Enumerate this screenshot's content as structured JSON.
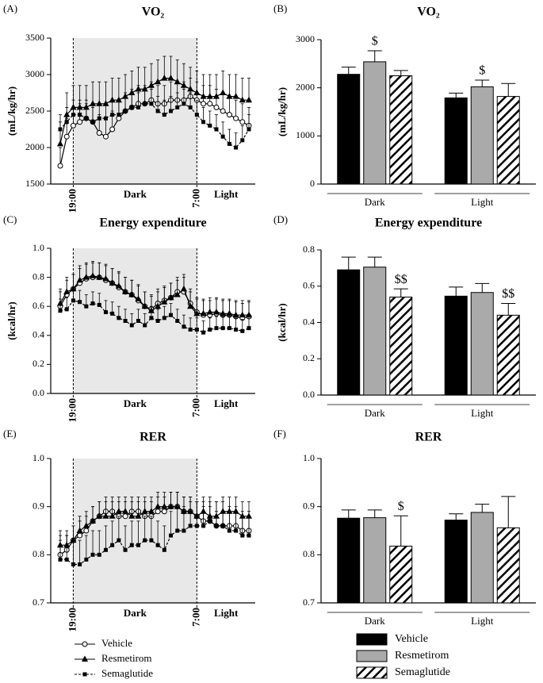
{
  "chart_data": [
    {
      "type": "line",
      "panel": "(A)",
      "title": "VO₂",
      "ylabel": "(mL/kg/hr)",
      "categories": [
        null,
        null,
        "19:00",
        null,
        null,
        null,
        null,
        null,
        null,
        null,
        null,
        null,
        null,
        null,
        null,
        null,
        null,
        null,
        null,
        null,
        null,
        "7:00",
        null,
        null,
        null,
        null,
        null,
        null,
        null,
        null
      ],
      "period_labels": [
        "Dark",
        "Light"
      ],
      "ylim": [
        1500,
        3500
      ],
      "yticks": [
        1500,
        2000,
        2500,
        3000,
        3500
      ],
      "series": [
        {
          "marker": "circle-open",
          "dash": false,
          "color": "#000",
          "values": [
            1750,
            2150,
            2300,
            2350,
            2400,
            2350,
            2200,
            2150,
            2250,
            2400,
            2500,
            2550,
            2600,
            2600,
            2650,
            2600,
            2600,
            2650,
            2650,
            2650,
            2700,
            2650,
            2600,
            2600,
            2550,
            2500,
            2450,
            2400,
            2350,
            2300
          ],
          "errors": [
            250,
            250,
            250,
            250,
            250,
            250,
            250,
            250,
            250,
            250,
            250,
            250,
            250,
            250,
            250,
            250,
            250,
            250,
            250,
            250,
            250,
            250,
            250,
            250,
            250,
            250,
            250,
            250,
            250,
            250
          ]
        },
        {
          "marker": "triangle",
          "dash": false,
          "color": "#000",
          "values": [
            2050,
            2450,
            2550,
            2550,
            2550,
            2600,
            2600,
            2600,
            2650,
            2650,
            2700,
            2750,
            2800,
            2800,
            2850,
            2900,
            2950,
            2950,
            2900,
            2850,
            2800,
            2750,
            2700,
            2700,
            2700,
            2750,
            2700,
            2700,
            2650,
            2650
          ],
          "errors": [
            300,
            300,
            300,
            300,
            300,
            300,
            300,
            300,
            300,
            300,
            300,
            300,
            300,
            300,
            300,
            300,
            300,
            300,
            300,
            300,
            300,
            300,
            300,
            300,
            300,
            300,
            300,
            300,
            300,
            300
          ]
        },
        {
          "marker": "square",
          "dash": true,
          "color": "#000",
          "values": [
            2250,
            2350,
            2450,
            2450,
            2400,
            2350,
            2400,
            2400,
            2450,
            2450,
            2500,
            2550,
            2550,
            2600,
            2600,
            2500,
            2450,
            2500,
            2550,
            2600,
            2550,
            2450,
            2350,
            2300,
            2250,
            2150,
            2050,
            2000,
            2100,
            2250
          ],
          "errors": [
            200,
            200,
            200,
            200,
            200,
            200,
            200,
            200,
            200,
            200,
            200,
            200,
            200,
            200,
            200,
            200,
            200,
            200,
            200,
            200,
            200,
            200,
            200,
            200,
            200,
            200,
            200,
            200,
            200,
            200
          ]
        }
      ]
    },
    {
      "type": "bar",
      "panel": "(B)",
      "title": "VO₂",
      "ylabel": "(mL/kg/hr)",
      "categories": [
        "Dark",
        "Light"
      ],
      "ylim": [
        0,
        3000
      ],
      "yticks": [
        0,
        1000,
        2000,
        3000
      ],
      "series": [
        {
          "color": "#000",
          "pattern": false,
          "values": [
            2280,
            1790
          ],
          "errors": [
            150,
            100
          ],
          "annotations": [
            null,
            null
          ]
        },
        {
          "color": "#aaa",
          "pattern": false,
          "values": [
            2540,
            2020
          ],
          "errors": [
            230,
            140
          ],
          "annotations": [
            "$",
            "$"
          ]
        },
        {
          "color": "#000",
          "pattern": true,
          "values": [
            2250,
            1820
          ],
          "errors": [
            110,
            270
          ],
          "annotations": [
            null,
            null
          ]
        }
      ]
    },
    {
      "type": "line",
      "panel": "(C)",
      "title": "Energy expenditure",
      "ylabel": "(kcal/hr)",
      "categories": [
        null,
        null,
        "19:00",
        null,
        null,
        null,
        null,
        null,
        null,
        null,
        null,
        null,
        null,
        null,
        null,
        null,
        null,
        null,
        null,
        null,
        null,
        "7:00",
        null,
        null,
        null,
        null,
        null,
        null,
        null,
        null
      ],
      "period_labels": [
        "Dark",
        "Light"
      ],
      "ylim": [
        0,
        1
      ],
      "yticks": [
        {
          "value": 0,
          "label": "0.0"
        },
        0.2,
        0.4,
        0.6,
        0.8,
        {
          "value": 1,
          "label": "1.0"
        }
      ],
      "series": [
        {
          "marker": "circle-open",
          "dash": false,
          "color": "#000",
          "values": [
            0.6,
            0.68,
            0.72,
            0.76,
            0.79,
            0.8,
            0.8,
            0.78,
            0.76,
            0.73,
            0.7,
            0.68,
            0.64,
            0.6,
            0.58,
            0.62,
            0.64,
            0.66,
            0.7,
            0.7,
            0.62,
            0.56,
            0.54,
            0.54,
            0.55,
            0.54,
            0.54,
            0.53,
            0.52,
            0.53
          ],
          "errors": [
            0.1,
            0.1,
            0.1,
            0.1,
            0.1,
            0.1,
            0.1,
            0.1,
            0.1,
            0.1,
            0.1,
            0.1,
            0.1,
            0.1,
            0.1,
            0.1,
            0.1,
            0.1,
            0.1,
            0.1,
            0.1,
            0.1,
            0.1,
            0.1,
            0.1,
            0.1,
            0.1,
            0.1,
            0.1,
            0.1
          ]
        },
        {
          "marker": "triangle",
          "dash": false,
          "color": "#000",
          "values": [
            0.62,
            0.7,
            0.72,
            0.78,
            0.8,
            0.81,
            0.8,
            0.79,
            0.76,
            0.74,
            0.7,
            0.68,
            0.65,
            0.6,
            0.57,
            0.6,
            0.63,
            0.66,
            0.68,
            0.72,
            0.6,
            0.55,
            0.55,
            0.56,
            0.56,
            0.55,
            0.55,
            0.54,
            0.54,
            0.54
          ],
          "errors": [
            0.1,
            0.1,
            0.1,
            0.1,
            0.1,
            0.1,
            0.1,
            0.1,
            0.1,
            0.1,
            0.1,
            0.1,
            0.1,
            0.1,
            0.1,
            0.1,
            0.1,
            0.1,
            0.1,
            0.1,
            0.1,
            0.1,
            0.1,
            0.1,
            0.1,
            0.1,
            0.1,
            0.1,
            0.1,
            0.1
          ]
        },
        {
          "marker": "square",
          "dash": true,
          "color": "#000",
          "values": [
            0.57,
            0.58,
            0.64,
            0.63,
            0.6,
            0.62,
            0.61,
            0.56,
            0.55,
            0.52,
            0.5,
            0.47,
            0.5,
            0.47,
            0.52,
            0.5,
            0.52,
            0.54,
            0.5,
            0.46,
            0.44,
            0.44,
            0.42,
            0.44,
            0.45,
            0.45,
            0.45,
            0.44,
            0.43,
            0.45
          ],
          "errors": [
            0.08,
            0.08,
            0.08,
            0.08,
            0.08,
            0.08,
            0.08,
            0.08,
            0.08,
            0.08,
            0.08,
            0.08,
            0.08,
            0.08,
            0.08,
            0.08,
            0.08,
            0.08,
            0.08,
            0.08,
            0.08,
            0.08,
            0.08,
            0.08,
            0.08,
            0.08,
            0.08,
            0.08,
            0.08,
            0.08
          ]
        }
      ]
    },
    {
      "type": "bar",
      "panel": "(D)",
      "title": "Energy expenditure",
      "ylabel": "(kcal/hr)",
      "categories": [
        "Dark",
        "Light"
      ],
      "ylim": [
        0,
        0.8
      ],
      "yticks": [
        {
          "value": 0,
          "label": "0.0"
        },
        0.2,
        0.4,
        0.6,
        0.8
      ],
      "series": [
        {
          "color": "#000",
          "pattern": false,
          "values": [
            0.69,
            0.545
          ],
          "errors": [
            0.07,
            0.05
          ],
          "annotations": [
            null,
            null
          ]
        },
        {
          "color": "#aaa",
          "pattern": false,
          "values": [
            0.705,
            0.565
          ],
          "errors": [
            0.055,
            0.05
          ],
          "annotations": [
            null,
            null
          ]
        },
        {
          "color": "#000",
          "pattern": true,
          "values": [
            0.54,
            0.44
          ],
          "errors": [
            0.045,
            0.065
          ],
          "annotations": [
            "$$",
            "$$"
          ]
        }
      ]
    },
    {
      "type": "line",
      "panel": "(E)",
      "title": "RER",
      "legend": "below",
      "categories": [
        null,
        null,
        "19:00",
        null,
        null,
        null,
        null,
        null,
        null,
        null,
        null,
        null,
        null,
        null,
        null,
        null,
        null,
        null,
        null,
        null,
        null,
        "7:00",
        null,
        null,
        null,
        null,
        null,
        null,
        null,
        null
      ],
      "period_labels": [
        "Dark",
        "Light"
      ],
      "ylim": [
        0.7,
        1.0
      ],
      "yticks": [
        0.7,
        0.8,
        0.9,
        {
          "value": 1,
          "label": "1.0"
        }
      ],
      "series": [
        {
          "name": "Vehicle",
          "marker": "circle-open",
          "dash": false,
          "color": "#000",
          "values": [
            0.8,
            0.81,
            0.83,
            0.84,
            0.85,
            0.87,
            0.88,
            0.89,
            0.89,
            0.88,
            0.88,
            0.89,
            0.89,
            0.88,
            0.88,
            0.89,
            0.89,
            0.9,
            0.9,
            0.89,
            0.89,
            0.88,
            0.87,
            0.87,
            0.86,
            0.86,
            0.86,
            0.86,
            0.85,
            0.85
          ],
          "errors": [
            0.03,
            0.03,
            0.03,
            0.03,
            0.03,
            0.03,
            0.03,
            0.03,
            0.03,
            0.03,
            0.03,
            0.03,
            0.03,
            0.03,
            0.03,
            0.03,
            0.03,
            0.03,
            0.03,
            0.03,
            0.03,
            0.03,
            0.03,
            0.03,
            0.03,
            0.03,
            0.03,
            0.03,
            0.03,
            0.03
          ]
        },
        {
          "name": "Resmetirom",
          "marker": "triangle",
          "dash": false,
          "color": "#000",
          "values": [
            0.82,
            0.82,
            0.83,
            0.85,
            0.86,
            0.87,
            0.88,
            0.88,
            0.88,
            0.89,
            0.89,
            0.88,
            0.88,
            0.89,
            0.89,
            0.9,
            0.9,
            0.9,
            0.9,
            0.89,
            0.89,
            0.88,
            0.89,
            0.88,
            0.88,
            0.89,
            0.89,
            0.89,
            0.88,
            0.88
          ],
          "errors": [
            0.03,
            0.03,
            0.03,
            0.03,
            0.03,
            0.03,
            0.03,
            0.03,
            0.03,
            0.03,
            0.03,
            0.03,
            0.03,
            0.03,
            0.03,
            0.03,
            0.03,
            0.03,
            0.03,
            0.03,
            0.03,
            0.03,
            0.03,
            0.03,
            0.03,
            0.03,
            0.03,
            0.03,
            0.03,
            0.03
          ]
        },
        {
          "name": "Semaglutide",
          "marker": "square",
          "dash": true,
          "color": "#000",
          "values": [
            0.79,
            0.79,
            0.78,
            0.78,
            0.79,
            0.8,
            0.8,
            0.81,
            0.82,
            0.83,
            0.81,
            0.82,
            0.82,
            0.83,
            0.83,
            0.82,
            0.81,
            0.84,
            0.85,
            0.85,
            0.86,
            0.86,
            0.86,
            0.87,
            0.86,
            0.86,
            0.85,
            0.85,
            0.84,
            0.84
          ],
          "errors": [
            0.05,
            0.05,
            0.05,
            0.05,
            0.05,
            0.05,
            0.05,
            0.05,
            0.05,
            0.05,
            0.05,
            0.05,
            0.05,
            0.05,
            0.05,
            0.05,
            0.05,
            0.05,
            0.05,
            0.05,
            0.05,
            0.05,
            0.05,
            0.05,
            0.05,
            0.05,
            0.05,
            0.05,
            0.05,
            0.05
          ]
        }
      ]
    },
    {
      "type": "bar",
      "panel": "(F)",
      "title": "RER",
      "legend": "below",
      "categories": [
        "Dark",
        "Light"
      ],
      "ylim": [
        0.7,
        1.0
      ],
      "yticks": [
        0.7,
        0.8,
        0.9,
        {
          "value": 1,
          "label": "1.0"
        }
      ],
      "series": [
        {
          "name": "Vehicle",
          "color": "#000",
          "pattern": false,
          "values": [
            0.876,
            0.872
          ],
          "errors": [
            0.017,
            0.013
          ],
          "annotations": [
            null,
            null
          ]
        },
        {
          "name": "Resmetirom",
          "color": "#aaa",
          "pattern": false,
          "values": [
            0.877,
            0.888
          ],
          "errors": [
            0.016,
            0.017
          ],
          "annotations": [
            null,
            null
          ]
        },
        {
          "name": "Semaglutide",
          "color": "#000",
          "pattern": true,
          "values": [
            0.818,
            0.856
          ],
          "errors": [
            0.063,
            0.065
          ],
          "annotations": [
            "$",
            null
          ]
        }
      ]
    }
  ]
}
